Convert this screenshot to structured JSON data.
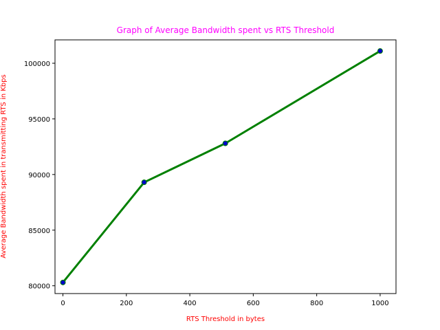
{
  "chart_data": {
    "type": "line",
    "title": "Graph of Average Bandwidth spent vs RTS Threshold",
    "xlabel": "RTS Threshold in bytes",
    "ylabel": "Average Bandwidth spent in transmitting RTS in Kbps",
    "x": [
      0,
      256,
      512,
      1000
    ],
    "series": [
      {
        "values": [
          80300,
          89300,
          92800,
          101100
        ]
      }
    ],
    "xlim": [
      -25,
      1050
    ],
    "ylim": [
      79300,
      102100
    ],
    "xticks": [
      0,
      200,
      400,
      600,
      800,
      1000
    ],
    "yticks": [
      80000,
      85000,
      90000,
      95000,
      100000
    ],
    "grid": false,
    "colors": {
      "line": "#008000",
      "marker_fill": "#0000cc",
      "marker_edge": "#008000",
      "title": "#ff00ff",
      "axis_labels": "#ff0000"
    }
  }
}
